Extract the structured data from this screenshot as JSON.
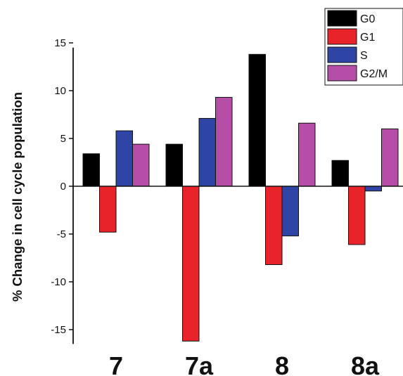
{
  "chart_data": {
    "type": "bar",
    "categories": [
      "7",
      "7a",
      "8",
      "8a"
    ],
    "series": [
      {
        "name": "G0",
        "color": "#000000",
        "values": [
          3.4,
          4.4,
          13.8,
          2.7
        ]
      },
      {
        "name": "G1",
        "color": "#e8232a",
        "values": [
          -4.8,
          -16.2,
          -8.2,
          -6.1
        ]
      },
      {
        "name": "S",
        "color": "#2f45a6",
        "values": [
          5.8,
          7.1,
          -5.2,
          -0.5
        ]
      },
      {
        "name": "G2/M",
        "color": "#b64ea8",
        "values": [
          4.4,
          9.3,
          6.6,
          6.0
        ]
      }
    ],
    "ylabel": "% Change in cell cycle population",
    "xlabel": "",
    "ylim": [
      -16.5,
      14.5
    ],
    "yticks": [
      15,
      10,
      5,
      0,
      -5,
      -10,
      -15
    ],
    "ytick_labels": [
      "15",
      "10",
      "5",
      "0",
      "-5",
      "-10",
      "-15"
    ],
    "grid": false,
    "legend_position": "top-right"
  }
}
